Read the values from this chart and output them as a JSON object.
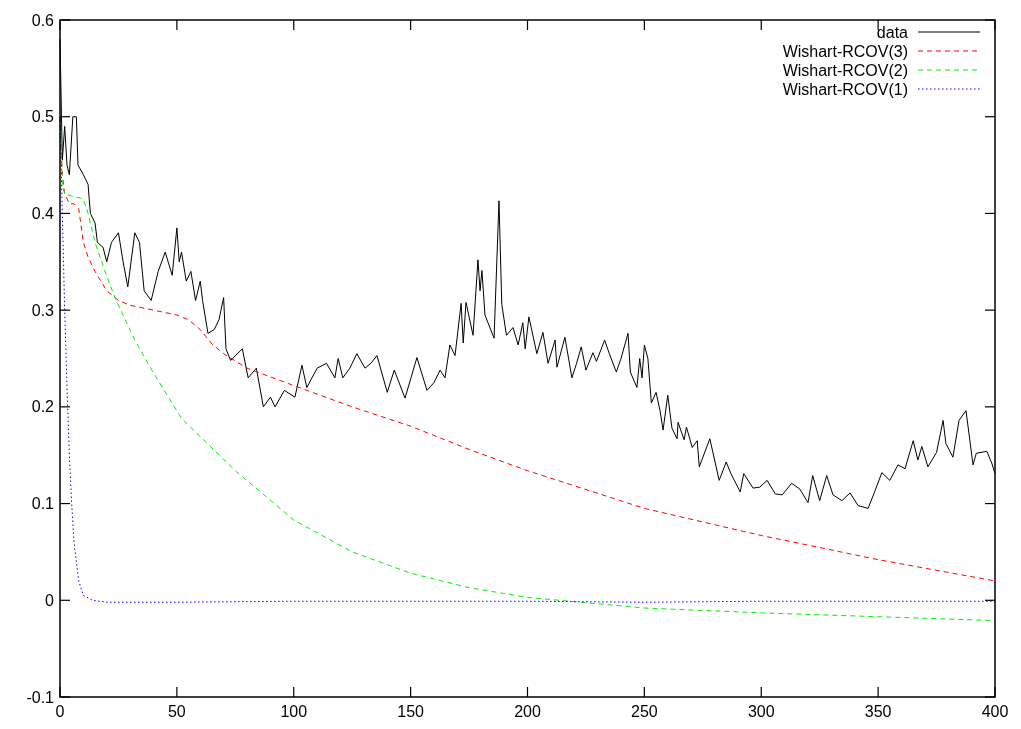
{
  "chart_data": {
    "type": "line",
    "xlim": [
      0,
      400
    ],
    "ylim": [
      -0.1,
      0.6
    ],
    "xticks": [
      0,
      50,
      100,
      150,
      200,
      250,
      300,
      350,
      400
    ],
    "yticks": [
      -0.1,
      0,
      0.1,
      0.2,
      0.3,
      0.4,
      0.5,
      0.6
    ],
    "grid": false,
    "legend": "top right",
    "series": [
      {
        "name": "data",
        "color": "#000000",
        "line_style": "solid",
        "x": [
          0,
          1,
          2,
          3,
          4,
          5.5,
          7,
          7.7,
          10,
          12,
          13,
          15,
          16,
          18.4,
          20,
          22,
          25,
          27,
          29,
          32,
          34,
          36,
          39,
          42,
          45,
          48,
          50,
          51,
          52,
          54,
          56,
          58,
          60,
          61,
          63.3,
          66,
          68,
          70,
          71,
          73,
          78,
          80.5,
          84,
          87,
          90,
          92,
          96,
          100.5,
          103.5,
          105.6,
          110,
          114,
          117.6,
          119,
          121,
          124,
          127,
          130.5,
          133,
          135.6,
          140,
          143,
          147.6,
          152.7,
          157,
          160,
          162.6,
          164.7,
          166.8,
          169,
          171.6,
          172.5,
          173.7,
          176.7,
          178.8,
          179.7,
          180.5,
          181.8,
          185.7,
          187.8,
          189,
          191,
          193.8,
          196,
          198,
          199,
          200.6,
          204,
          206.6,
          208.8,
          211.8,
          212.6,
          216,
          219,
          221,
          223,
          225,
          228,
          229.5,
          233,
          235,
          238,
          240,
          243,
          244,
          246.8,
          248,
          249,
          250,
          251.5,
          253,
          255,
          256.7,
          258,
          260,
          261.8,
          264,
          264.4,
          267,
          268,
          270.5,
          272.6,
          273.5,
          278,
          282,
          285,
          287,
          291,
          292.5,
          296.5,
          299.4,
          302.5,
          306,
          309,
          313,
          316.5,
          320,
          322,
          325,
          328,
          330.7,
          334.5,
          338,
          341.4,
          345.7,
          348,
          351.6,
          355,
          358.5,
          361.5,
          365,
          367,
          368.7,
          371.3,
          375,
          377.8,
          379,
          382,
          384.6,
          387.6,
          390.6,
          392,
          396.5,
          398.6,
          400
        ],
        "values": [
          0.58,
          0.455,
          0.49,
          0.45,
          0.44,
          0.5,
          0.5,
          0.45,
          0.44,
          0.43,
          0.4,
          0.39,
          0.37,
          0.365,
          0.35,
          0.37,
          0.38,
          0.35,
          0.324,
          0.38,
          0.37,
          0.32,
          0.31,
          0.34,
          0.36,
          0.336,
          0.385,
          0.35,
          0.36,
          0.33,
          0.34,
          0.31,
          0.33,
          0.31,
          0.276,
          0.28,
          0.29,
          0.313,
          0.26,
          0.248,
          0.26,
          0.23,
          0.24,
          0.2,
          0.21,
          0.2,
          0.217,
          0.21,
          0.243,
          0.22,
          0.24,
          0.245,
          0.23,
          0.25,
          0.23,
          0.24,
          0.255,
          0.24,
          0.245,
          0.253,
          0.215,
          0.238,
          0.209,
          0.251,
          0.217,
          0.225,
          0.238,
          0.23,
          0.264,
          0.253,
          0.307,
          0.266,
          0.308,
          0.274,
          0.352,
          0.32,
          0.341,
          0.295,
          0.271,
          0.413,
          0.306,
          0.274,
          0.282,
          0.264,
          0.287,
          0.26,
          0.293,
          0.255,
          0.277,
          0.245,
          0.269,
          0.241,
          0.272,
          0.23,
          0.245,
          0.262,
          0.238,
          0.256,
          0.247,
          0.269,
          0.255,
          0.236,
          0.25,
          0.276,
          0.236,
          0.22,
          0.25,
          0.23,
          0.264,
          0.25,
          0.204,
          0.215,
          0.196,
          0.176,
          0.212,
          0.178,
          0.167,
          0.184,
          0.166,
          0.179,
          0.158,
          0.165,
          0.138,
          0.167,
          0.124,
          0.143,
          0.131,
          0.112,
          0.131,
          0.116,
          0.117,
          0.124,
          0.11,
          0.109,
          0.121,
          0.115,
          0.101,
          0.129,
          0.103,
          0.129,
          0.109,
          0.103,
          0.111,
          0.098,
          0.095,
          0.109,
          0.132,
          0.124,
          0.14,
          0.136,
          0.165,
          0.145,
          0.159,
          0.138,
          0.153,
          0.186,
          0.162,
          0.148,
          0.186,
          0.196,
          0.14,
          0.152,
          0.154,
          0.142,
          0.131
        ]
      },
      {
        "name": "Wishart-RCOV(3)",
        "color": "#ff0000",
        "line_style": "dashed",
        "x": [
          0,
          1,
          2,
          4,
          6,
          8,
          10,
          12,
          15,
          20,
          25,
          30,
          40,
          50,
          55,
          60,
          65,
          70,
          80,
          100,
          125,
          150,
          175,
          200,
          250,
          300,
          350,
          400
        ],
        "values": [
          0.5,
          0.44,
          0.42,
          0.41,
          0.41,
          0.405,
          0.37,
          0.355,
          0.34,
          0.32,
          0.31,
          0.305,
          0.3,
          0.295,
          0.29,
          0.28,
          0.265,
          0.255,
          0.24,
          0.222,
          0.2,
          0.18,
          0.156,
          0.134,
          0.095,
          0.067,
          0.042,
          0.02
        ]
      },
      {
        "name": "Wishart-RCOV(2)",
        "color": "#00ee00",
        "line_style": "dashed",
        "x": [
          0,
          1,
          2,
          5,
          10,
          12,
          15,
          20,
          23.5,
          32,
          40,
          52,
          75,
          100,
          125,
          150,
          175,
          200,
          250,
          300,
          350,
          400
        ],
        "values": [
          0.5,
          0.43,
          0.42,
          0.418,
          0.415,
          0.4,
          0.37,
          0.335,
          0.313,
          0.269,
          0.235,
          0.188,
          0.134,
          0.083,
          0.05,
          0.028,
          0.013,
          0.003,
          -0.008,
          -0.013,
          -0.017,
          -0.021
        ]
      },
      {
        "name": "Wishart-RCOV(1)",
        "color": "#0000ff",
        "line_style": "dotted",
        "x": [
          0,
          1,
          2,
          3,
          4,
          5,
          6,
          8,
          10,
          14,
          20,
          50,
          100,
          150,
          200,
          250,
          300,
          350,
          400
        ],
        "values": [
          0.5,
          0.4,
          0.3,
          0.22,
          0.15,
          0.1,
          0.06,
          0.02,
          0.005,
          0,
          -0.002,
          -0.002,
          -0.001,
          -0.001,
          -0.001,
          -0.002,
          -0.001,
          -0.001,
          -0.001
        ]
      }
    ]
  }
}
